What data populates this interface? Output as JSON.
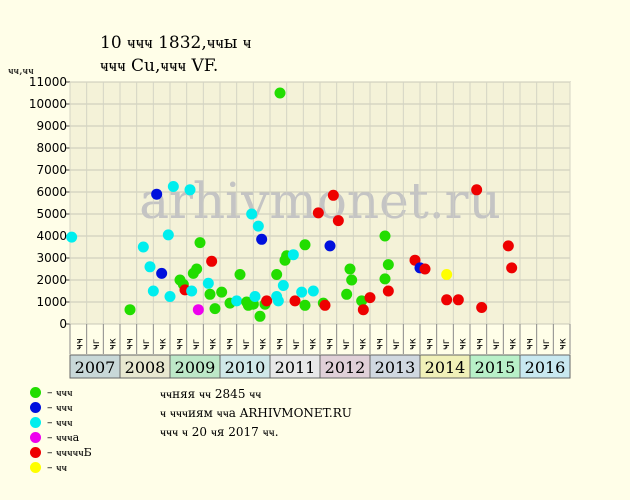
{
  "header": {
    "title_line1": "10 ҹҹҹ 1832,ҹҹы ҹ",
    "title_line2": "ҹҹҹ Cu,ҹҹҹ VF.",
    "y_units": "ҹҹ,ҹҹ"
  },
  "watermark": "arhivmonet.ru",
  "legend": [
    {
      "label": "– ҹҹҹ",
      "color": "#22dd00"
    },
    {
      "label": "– ҹҹҹ",
      "color": "#0010dd"
    },
    {
      "label": "– ҹҹҹ",
      "color": "#00eeee"
    },
    {
      "label": "– ҹҹҹа",
      "color": "#ee00ee"
    },
    {
      "label": "– ҹҹҹҹҹБ",
      "color": "#ee0000"
    },
    {
      "label": "– ҹҹ",
      "color": "#ffff00"
    }
  ],
  "notes": [
    "ҹҹняя ҹҹ 2845 ҹҹ",
    "ҹ ҹҹҹиям ҹҹа ARHIVMONET.RU",
    "ҹҹҹ ҹ 20 ҹя 2017 ҹҹ."
  ],
  "chart_data": {
    "type": "scatter",
    "ylim": [
      0,
      11000
    ],
    "yticks": [
      0,
      1000,
      2000,
      3000,
      4000,
      5000,
      6000,
      7000,
      8000,
      9000,
      10000,
      11000
    ],
    "grid": true,
    "month_labels": [
      "ҹҹ",
      "ҹг",
      "ҹк"
    ],
    "years": [
      {
        "label": "2007",
        "color": "#c8d8d8"
      },
      {
        "label": "2008",
        "color": "#e8e8d0"
      },
      {
        "label": "2009",
        "color": "#bde8c8"
      },
      {
        "label": "2010",
        "color": "#d0e8e8"
      },
      {
        "label": "2011",
        "color": "#e8e8e8"
      },
      {
        "label": "2012",
        "color": "#e0d0d8"
      },
      {
        "label": "2013",
        "color": "#d0d8e0"
      },
      {
        "label": "2014",
        "color": "#f0f0b8"
      },
      {
        "label": "2015",
        "color": "#b8f0c8"
      },
      {
        "label": "2016",
        "color": "#c8e8f0"
      }
    ],
    "points": [
      {
        "x": 0.1,
        "y": 3950,
        "color": "#00eeee"
      },
      {
        "x": 3.6,
        "y": 650,
        "color": "#22dd00"
      },
      {
        "x": 4.4,
        "y": 3500,
        "color": "#00eeee"
      },
      {
        "x": 4.8,
        "y": 2600,
        "color": "#00eeee"
      },
      {
        "x": 5.0,
        "y": 1500,
        "color": "#00eeee"
      },
      {
        "x": 5.2,
        "y": 5900,
        "color": "#0010dd"
      },
      {
        "x": 5.5,
        "y": 2300,
        "color": "#0010dd"
      },
      {
        "x": 5.9,
        "y": 4050,
        "color": "#00eeee"
      },
      {
        "x": 6.0,
        "y": 1250,
        "color": "#00eeee"
      },
      {
        "x": 6.2,
        "y": 6250,
        "color": "#00eeee"
      },
      {
        "x": 6.6,
        "y": 2000,
        "color": "#22dd00"
      },
      {
        "x": 6.8,
        "y": 1800,
        "color": "#22dd00"
      },
      {
        "x": 6.9,
        "y": 1550,
        "color": "#ee0000"
      },
      {
        "x": 7.2,
        "y": 6100,
        "color": "#00eeee"
      },
      {
        "x": 7.3,
        "y": 1500,
        "color": "#00eeee"
      },
      {
        "x": 7.4,
        "y": 2300,
        "color": "#22dd00"
      },
      {
        "x": 7.6,
        "y": 2500,
        "color": "#22dd00"
      },
      {
        "x": 7.7,
        "y": 650,
        "color": "#ee00ee"
      },
      {
        "x": 7.8,
        "y": 3700,
        "color": "#22dd00"
      },
      {
        "x": 8.3,
        "y": 1850,
        "color": "#00eeee"
      },
      {
        "x": 8.4,
        "y": 1350,
        "color": "#22dd00"
      },
      {
        "x": 8.5,
        "y": 2850,
        "color": "#ee0000"
      },
      {
        "x": 8.7,
        "y": 700,
        "color": "#22dd00"
      },
      {
        "x": 9.1,
        "y": 1450,
        "color": "#22dd00"
      },
      {
        "x": 9.6,
        "y": 950,
        "color": "#22dd00"
      },
      {
        "x": 10.0,
        "y": 1050,
        "color": "#00eeee"
      },
      {
        "x": 10.2,
        "y": 2250,
        "color": "#22dd00"
      },
      {
        "x": 10.6,
        "y": 1000,
        "color": "#22dd00"
      },
      {
        "x": 10.7,
        "y": 850,
        "color": "#22dd00"
      },
      {
        "x": 10.9,
        "y": 5000,
        "color": "#00eeee"
      },
      {
        "x": 11.0,
        "y": 900,
        "color": "#22dd00"
      },
      {
        "x": 11.1,
        "y": 1250,
        "color": "#00eeee"
      },
      {
        "x": 11.3,
        "y": 4450,
        "color": "#00eeee"
      },
      {
        "x": 11.4,
        "y": 350,
        "color": "#22dd00"
      },
      {
        "x": 11.5,
        "y": 3850,
        "color": "#0010dd"
      },
      {
        "x": 11.7,
        "y": 900,
        "color": "#22dd00"
      },
      {
        "x": 11.8,
        "y": 1050,
        "color": "#ee0000"
      },
      {
        "x": 12.4,
        "y": 2250,
        "color": "#22dd00"
      },
      {
        "x": 12.4,
        "y": 1250,
        "color": "#00eeee"
      },
      {
        "x": 12.5,
        "y": 1050,
        "color": "#00eeee"
      },
      {
        "x": 12.6,
        "y": 10500,
        "color": "#22dd00"
      },
      {
        "x": 12.8,
        "y": 1750,
        "color": "#00eeee"
      },
      {
        "x": 12.9,
        "y": 2900,
        "color": "#22dd00"
      },
      {
        "x": 13.0,
        "y": 3100,
        "color": "#22dd00"
      },
      {
        "x": 13.4,
        "y": 3150,
        "color": "#00eeee"
      },
      {
        "x": 13.5,
        "y": 1050,
        "color": "#ee0000"
      },
      {
        "x": 13.9,
        "y": 1450,
        "color": "#00eeee"
      },
      {
        "x": 14.1,
        "y": 850,
        "color": "#22dd00"
      },
      {
        "x": 14.1,
        "y": 3600,
        "color": "#22dd00"
      },
      {
        "x": 14.6,
        "y": 1500,
        "color": "#00eeee"
      },
      {
        "x": 14.9,
        "y": 5050,
        "color": "#ee0000"
      },
      {
        "x": 15.2,
        "y": 950,
        "color": "#22dd00"
      },
      {
        "x": 15.3,
        "y": 850,
        "color": "#ee0000"
      },
      {
        "x": 15.6,
        "y": 3550,
        "color": "#0010dd"
      },
      {
        "x": 15.8,
        "y": 5850,
        "color": "#ee0000"
      },
      {
        "x": 16.1,
        "y": 4700,
        "color": "#ee0000"
      },
      {
        "x": 16.6,
        "y": 1350,
        "color": "#22dd00"
      },
      {
        "x": 16.8,
        "y": 2500,
        "color": "#22dd00"
      },
      {
        "x": 16.9,
        "y": 2000,
        "color": "#22dd00"
      },
      {
        "x": 17.5,
        "y": 1050,
        "color": "#22dd00"
      },
      {
        "x": 17.6,
        "y": 650,
        "color": "#ee0000"
      },
      {
        "x": 18.0,
        "y": 1200,
        "color": "#ee0000"
      },
      {
        "x": 18.9,
        "y": 4000,
        "color": "#22dd00"
      },
      {
        "x": 18.9,
        "y": 2050,
        "color": "#22dd00"
      },
      {
        "x": 19.1,
        "y": 2700,
        "color": "#22dd00"
      },
      {
        "x": 19.1,
        "y": 1500,
        "color": "#ee0000"
      },
      {
        "x": 20.7,
        "y": 2900,
        "color": "#ee0000"
      },
      {
        "x": 21.0,
        "y": 2550,
        "color": "#0010dd"
      },
      {
        "x": 21.3,
        "y": 2500,
        "color": "#ee0000"
      },
      {
        "x": 22.6,
        "y": 2250,
        "color": "#ffff00"
      },
      {
        "x": 22.6,
        "y": 1100,
        "color": "#ee0000"
      },
      {
        "x": 23.3,
        "y": 1100,
        "color": "#ee0000"
      },
      {
        "x": 24.4,
        "y": 6100,
        "color": "#ee0000"
      },
      {
        "x": 24.7,
        "y": 750,
        "color": "#ee0000"
      },
      {
        "x": 26.3,
        "y": 3550,
        "color": "#ee0000"
      },
      {
        "x": 26.5,
        "y": 2550,
        "color": "#ee0000"
      }
    ]
  }
}
